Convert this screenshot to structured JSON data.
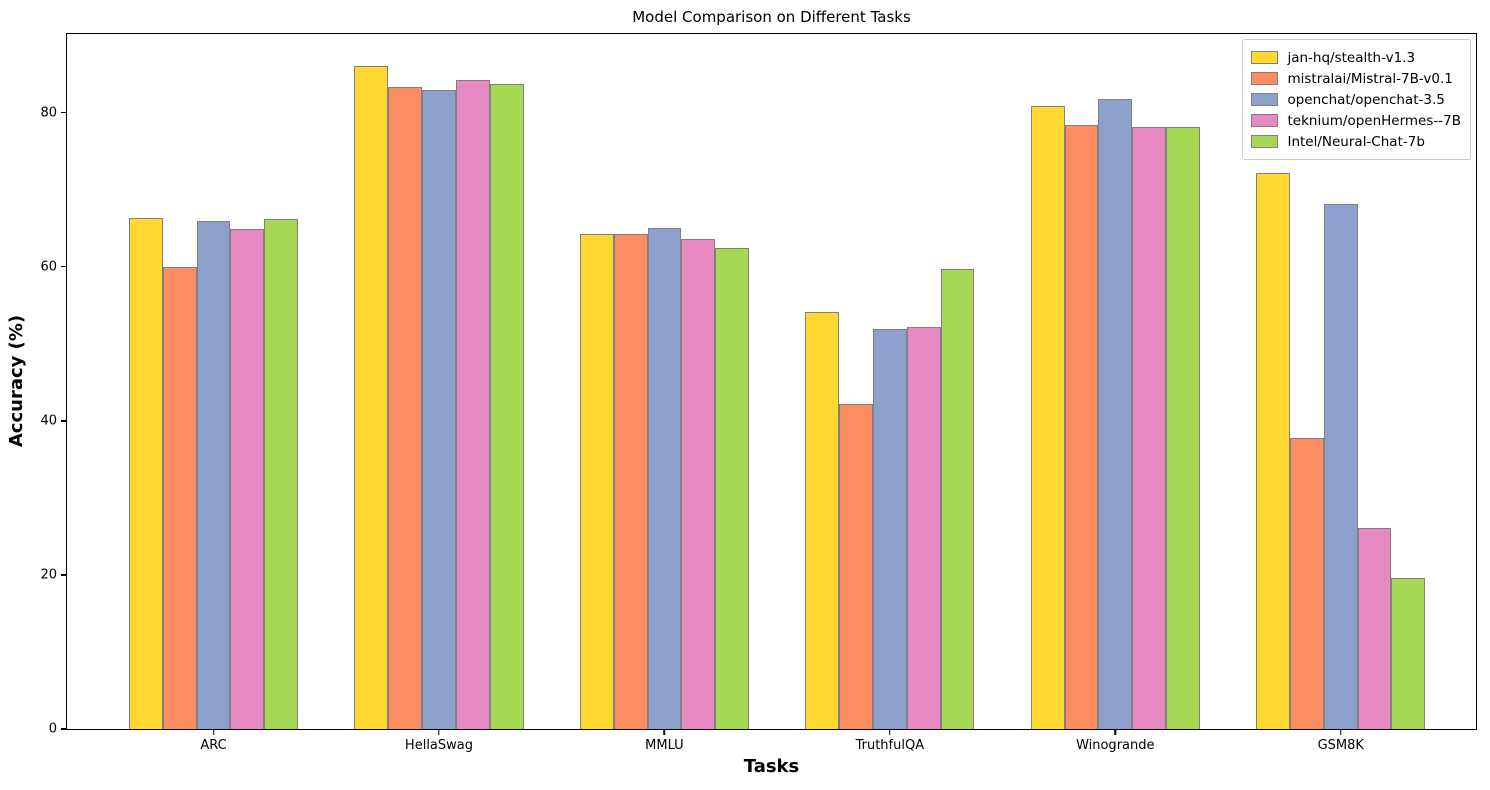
{
  "chart_data": {
    "type": "bar",
    "title": "Model Comparison on Different Tasks",
    "xlabel": "Tasks",
    "ylabel": "Accuracy (%)",
    "categories": [
      "ARC",
      "HellaSwag",
      "MMLU",
      "TruthfulQA",
      "Winogrande",
      "GSM8K"
    ],
    "series": [
      {
        "name": "jan-hq/stealth-v1.3",
        "color": "#FFD92F",
        "values": [
          66.3,
          86.0,
          64.3,
          54.1,
          80.8,
          72.2
        ]
      },
      {
        "name": "mistralai/Mistral-7B-v0.1",
        "color": "#FC8D62",
        "values": [
          60.0,
          83.3,
          64.2,
          42.2,
          78.4,
          37.8
        ]
      },
      {
        "name": "openchat/openchat-3.5",
        "color": "#8DA0CB",
        "values": [
          65.9,
          82.9,
          65.0,
          51.9,
          81.8,
          68.2
        ]
      },
      {
        "name": "teknium/openHermes--7B",
        "color": "#E78AC3",
        "values": [
          64.9,
          84.2,
          63.6,
          52.2,
          78.1,
          26.1
        ]
      },
      {
        "name": "Intel/Neural-Chat-7b",
        "color": "#A6D854",
        "values": [
          66.2,
          83.7,
          62.4,
          59.7,
          78.1,
          19.6
        ]
      }
    ],
    "ylim": [
      0,
      90.2
    ],
    "yticks": [
      0,
      20,
      40,
      60,
      80
    ],
    "xlim": [
      -0.65,
      5.6
    ],
    "bar_width_data_units": 0.15,
    "bar_edge_color": "#808080",
    "legend_position": "upper right",
    "grid": false,
    "text_color": "#000000"
  }
}
